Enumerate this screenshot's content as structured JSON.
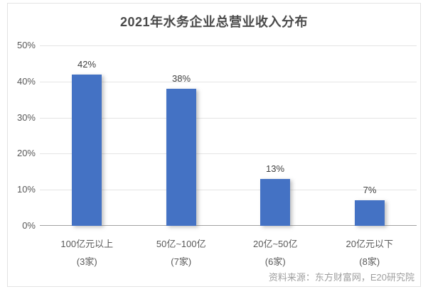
{
  "chart": {
    "title": "2021年水务企业总营业收入分布",
    "source": "资料来源：东方财富网，E20研究院"
  },
  "chart_data": {
    "type": "bar",
    "title": "2021年水务企业总营业收入分布",
    "categories": [
      "100亿元以上",
      "50亿~100亿",
      "20亿~50亿",
      "20亿元以下"
    ],
    "category_sublabels": [
      "(3家)",
      "(7家)",
      "(6家)",
      "(8家)"
    ],
    "values": [
      42,
      38,
      13,
      7
    ],
    "value_labels": [
      "42%",
      "38%",
      "13%",
      "7%"
    ],
    "unit": "%",
    "ylim": [
      0,
      50
    ],
    "yticks": [
      0,
      10,
      20,
      30,
      40,
      50
    ],
    "ytick_labels": [
      "0%",
      "10%",
      "20%",
      "30%",
      "40%",
      "50%"
    ],
    "grid": true,
    "legend": false,
    "bar_color": "#4472c4",
    "gridline_color": "#e4e4e4",
    "axis_color": "#a3a3a3",
    "source": "资料来源：东方财富网，E20研究院"
  }
}
